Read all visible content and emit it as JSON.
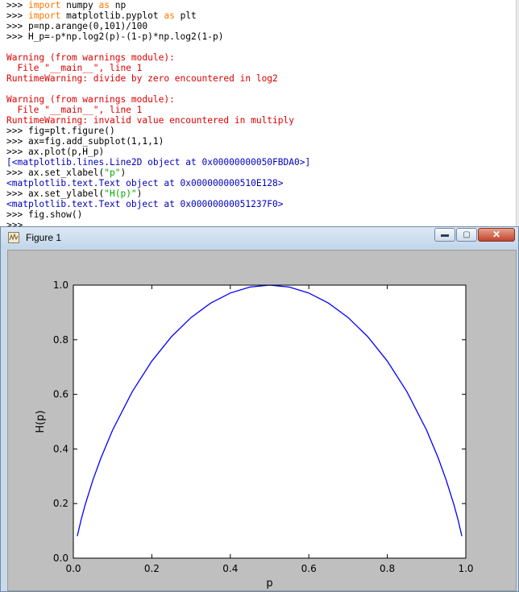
{
  "shell": {
    "lines": [
      [
        {
          "t": ">>> ",
          "c": "prompt"
        },
        {
          "t": "import",
          "c": "kw"
        },
        {
          "t": " numpy ",
          "c": "code"
        },
        {
          "t": "as",
          "c": "kw"
        },
        {
          "t": " np",
          "c": "code"
        }
      ],
      [
        {
          "t": ">>> ",
          "c": "prompt"
        },
        {
          "t": "import",
          "c": "kw"
        },
        {
          "t": " matplotlib.pyplot ",
          "c": "code"
        },
        {
          "t": "as",
          "c": "kw"
        },
        {
          "t": " plt",
          "c": "code"
        }
      ],
      [
        {
          "t": ">>> ",
          "c": "prompt"
        },
        {
          "t": "p=np.arange(0,101)/100",
          "c": "code"
        }
      ],
      [
        {
          "t": ">>> ",
          "c": "prompt"
        },
        {
          "t": "H_p=-p*np.log2(p)-(1-p)*np.log2(1-p)",
          "c": "code"
        }
      ],
      [],
      [
        {
          "t": "Warning (from warnings module):",
          "c": "err"
        }
      ],
      [
        {
          "t": "  File \"__main__\", line 1",
          "c": "err"
        }
      ],
      [
        {
          "t": "RuntimeWarning: divide by zero encountered in log2",
          "c": "err"
        }
      ],
      [],
      [
        {
          "t": "Warning (from warnings module):",
          "c": "err"
        }
      ],
      [
        {
          "t": "  File \"__main__\", line 1",
          "c": "err"
        }
      ],
      [
        {
          "t": "RuntimeWarning: invalid value encountered in multiply",
          "c": "err"
        }
      ],
      [
        {
          "t": ">>> ",
          "c": "prompt"
        },
        {
          "t": "fig=plt.figure()",
          "c": "code"
        }
      ],
      [
        {
          "t": ">>> ",
          "c": "prompt"
        },
        {
          "t": "ax=fig.add_subplot(1,1,1)",
          "c": "code"
        }
      ],
      [
        {
          "t": ">>> ",
          "c": "prompt"
        },
        {
          "t": "ax.plot(p,H_p)",
          "c": "code"
        }
      ],
      [
        {
          "t": "[<matplotlib.lines.Line2D object at 0x00000000050FBDA0>]",
          "c": "out"
        }
      ],
      [
        {
          "t": ">>> ",
          "c": "prompt"
        },
        {
          "t": "ax.set_xlabel(",
          "c": "code"
        },
        {
          "t": "\"p\"",
          "c": "str"
        },
        {
          "t": ")",
          "c": "code"
        }
      ],
      [
        {
          "t": "<matplotlib.text.Text object at 0x000000000510E128>",
          "c": "out"
        }
      ],
      [
        {
          "t": ">>> ",
          "c": "prompt"
        },
        {
          "t": "ax.set_ylabel(",
          "c": "code"
        },
        {
          "t": "\"H(p)\"",
          "c": "str"
        },
        {
          "t": ")",
          "c": "code"
        }
      ],
      [
        {
          "t": "<matplotlib.text.Text object at 0x00000000051237F0>",
          "c": "out"
        }
      ],
      [
        {
          "t": ">>> ",
          "c": "prompt"
        },
        {
          "t": "fig.show()",
          "c": "code"
        }
      ],
      [
        {
          "t": ">>> ",
          "c": "prompt"
        }
      ]
    ]
  },
  "window": {
    "title": "Figure 1",
    "icon": "matplotlib-figure-icon",
    "minimize_glyph": "▬",
    "maximize_glyph": "▢",
    "close_glyph": "✕"
  },
  "colors": {
    "line": "#0000ff",
    "figure_bg": "#bfbfbf",
    "axes_bg": "#ffffff"
  },
  "chart_data": {
    "type": "line",
    "title": "",
    "xlabel": "p",
    "ylabel": "H(p)",
    "xlim": [
      0.0,
      1.0
    ],
    "ylim": [
      0.0,
      1.0
    ],
    "xticks": [
      "0.0",
      "0.2",
      "0.4",
      "0.6",
      "0.8",
      "1.0"
    ],
    "yticks": [
      "0.0",
      "0.2",
      "0.4",
      "0.6",
      "0.8",
      "1.0"
    ],
    "grid": false,
    "series": [
      {
        "x": [
          0.01,
          0.02,
          0.03,
          0.05,
          0.07,
          0.1,
          0.15,
          0.2,
          0.25,
          0.3,
          0.35,
          0.4,
          0.45,
          0.5,
          0.55,
          0.6,
          0.65,
          0.7,
          0.75,
          0.8,
          0.85,
          0.9,
          0.93,
          0.95,
          0.97,
          0.98,
          0.99
        ],
        "values": [
          0.0808,
          0.1414,
          0.1944,
          0.2864,
          0.3659,
          0.469,
          0.6098,
          0.7219,
          0.8113,
          0.8813,
          0.9341,
          0.971,
          0.9928,
          1.0,
          0.9928,
          0.971,
          0.9341,
          0.8813,
          0.8113,
          0.7219,
          0.6098,
          0.469,
          0.3659,
          0.2864,
          0.1944,
          0.1414,
          0.0808
        ]
      }
    ]
  }
}
